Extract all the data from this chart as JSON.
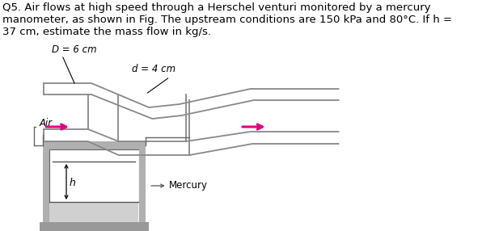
{
  "title_text": "Q5. Air flows at high speed through a Herschel venturi monitored by a mercury\nmanometer, as shown in Fig. The upstream conditions are 150 kPa and 80°C. If h =\n37 cm, estimate the mass flow in kg/s.",
  "title_fontsize": 9.5,
  "venturi_color": "#888888",
  "arrow_color": "#e0007f",
  "text_color": "#000000",
  "label_D": "D = 6 cm",
  "label_d": "d = 4 cm",
  "label_air": "Air",
  "label_mercury": "Mercury",
  "label_h": "h",
  "background": "#ffffff",
  "gray_fill": "#b0b0b0",
  "white_fill": "#ffffff",
  "light_gray": "#d0d0d0"
}
